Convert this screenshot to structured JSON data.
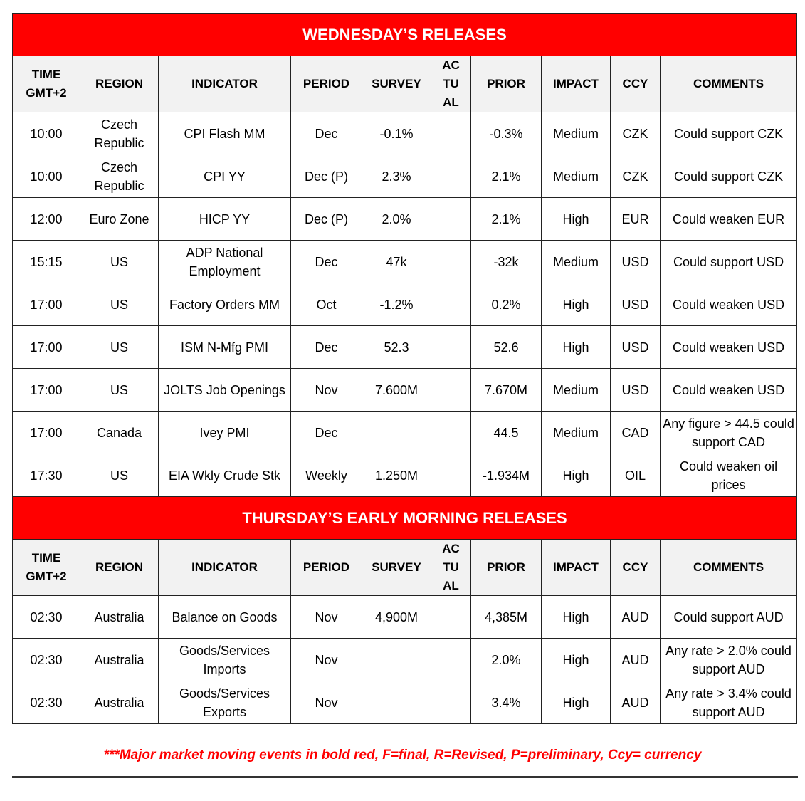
{
  "headers": [
    "TIME\nGMT+2",
    "REGION",
    "INDICATOR",
    "PERIOD",
    "SURVEY",
    "AC\nTU\nAL",
    "PRIOR",
    "IMPACT",
    "CCY",
    "COMMENTS"
  ],
  "sections": [
    {
      "title": "WEDNESDAY’S RELEASES",
      "rows": [
        [
          "10:00",
          "Czech Republic",
          "CPI Flash MM",
          "Dec",
          "-0.1%",
          "",
          "-0.3%",
          "Medium",
          "CZK",
          "Could support CZK"
        ],
        [
          "10:00",
          "Czech Republic",
          "CPI YY",
          "Dec (P)",
          "2.3%",
          "",
          "2.1%",
          "Medium",
          "CZK",
          "Could support CZK"
        ],
        [
          "12:00",
          "Euro Zone",
          "HICP YY",
          "Dec (P)",
          "2.0%",
          "",
          "2.1%",
          "High",
          "EUR",
          "Could weaken EUR"
        ],
        [
          "15:15",
          "US",
          "ADP National Employment",
          "Dec",
          "47k",
          "",
          "-32k",
          "Medium",
          "USD",
          "Could support USD"
        ],
        [
          "17:00",
          "US",
          "Factory Orders MM",
          "Oct",
          "-1.2%",
          "",
          "0.2%",
          "High",
          "USD",
          "Could weaken USD"
        ],
        [
          "17:00",
          "US",
          "ISM N-Mfg PMI",
          "Dec",
          "52.3",
          "",
          "52.6",
          "High",
          "USD",
          "Could weaken USD"
        ],
        [
          "17:00",
          "US",
          "JOLTS Job Openings",
          "Nov",
          "7.600M",
          "",
          "7.670M",
          "Medium",
          "USD",
          "Could weaken USD"
        ],
        [
          "17:00",
          "Canada",
          "Ivey PMI",
          "Dec",
          "",
          "",
          "44.5",
          "Medium",
          "CAD",
          "Any figure > 44.5 could support CAD"
        ],
        [
          "17:30",
          "US",
          "EIA Wkly Crude Stk",
          "Weekly",
          "1.250M",
          "",
          "-1.934M",
          "High",
          "OIL",
          "Could weaken oil prices"
        ]
      ]
    },
    {
      "title": "THURSDAY’S EARLY MORNING RELEASES",
      "rows": [
        [
          "02:30",
          "Australia",
          "Balance on Goods",
          "Nov",
          "4,900M",
          "",
          "4,385M",
          "High",
          "AUD",
          "Could support AUD"
        ],
        [
          "02:30",
          "Australia",
          "Goods/Services Imports",
          "Nov",
          "",
          "",
          "2.0%",
          "High",
          "AUD",
          "Any rate > 2.0% could support AUD"
        ],
        [
          "02:30",
          "Australia",
          "Goods/Services Exports",
          "Nov",
          "",
          "",
          "3.4%",
          "High",
          "AUD",
          "Any rate > 3.4% could support AUD"
        ]
      ]
    }
  ],
  "footnote": "***Major market moving events in bold red, F=final, R=Revised, P=preliminary, Ccy= currency",
  "colors": {
    "banner": "#ff0000",
    "header_bg": "#f2f2f2",
    "footnote": "#ff0000"
  }
}
